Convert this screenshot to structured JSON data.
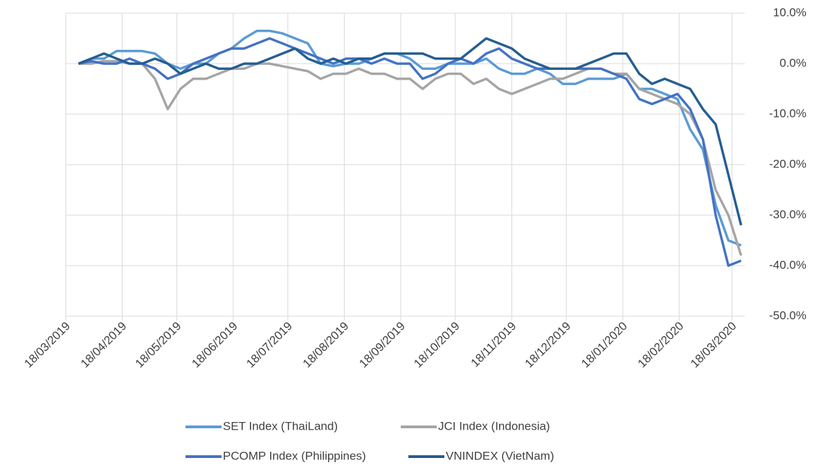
{
  "chart_data": {
    "type": "line",
    "x": [
      "25/03/2019",
      "01/04/2019",
      "08/04/2019",
      "15/04/2019",
      "22/04/2019",
      "29/04/2019",
      "06/05/2019",
      "13/05/2019",
      "20/05/2019",
      "27/05/2019",
      "03/06/2019",
      "10/06/2019",
      "17/06/2019",
      "24/06/2019",
      "01/07/2019",
      "08/07/2019",
      "15/07/2019",
      "22/07/2019",
      "29/07/2019",
      "05/08/2019",
      "12/08/2019",
      "19/08/2019",
      "26/08/2019",
      "02/09/2019",
      "09/09/2019",
      "16/09/2019",
      "23/09/2019",
      "30/09/2019",
      "07/10/2019",
      "14/10/2019",
      "21/10/2019",
      "28/10/2019",
      "04/11/2019",
      "11/11/2019",
      "18/11/2019",
      "25/11/2019",
      "02/12/2019",
      "09/12/2019",
      "16/12/2019",
      "23/12/2019",
      "30/12/2019",
      "06/01/2020",
      "13/01/2020",
      "20/01/2020",
      "27/01/2020",
      "03/02/2020",
      "10/02/2020",
      "17/02/2020",
      "24/02/2020",
      "02/03/2020",
      "09/03/2020",
      "16/03/2020",
      "23/03/2020"
    ],
    "series": [
      {
        "name": "SET Index (ThaiLand)",
        "color": "#5b9bd5",
        "values": [
          0,
          1,
          1,
          2.5,
          2.5,
          2.5,
          2,
          0,
          -1,
          0,
          0,
          2,
          3,
          5,
          6.5,
          6.5,
          6,
          5,
          4,
          0,
          -0.5,
          0,
          0,
          1,
          2,
          2,
          1,
          -1,
          -1,
          0,
          0,
          0,
          1,
          -1,
          -2,
          -2,
          -1,
          -2,
          -4,
          -4,
          -3,
          -3,
          -3,
          -2,
          -5,
          -5,
          -6,
          -7,
          -13,
          -17,
          -28,
          -35,
          -36
        ]
      },
      {
        "name": "JCI Index (Indonesia)",
        "color": "#a5a5a5",
        "values": [
          0,
          0,
          0.5,
          0.5,
          0,
          0,
          -3,
          -9,
          -5,
          -3,
          -3,
          -2,
          -1,
          -1,
          0,
          0,
          -0.5,
          -1,
          -1.5,
          -3,
          -2,
          -2,
          -1,
          -2,
          -2,
          -3,
          -3,
          -5,
          -3,
          -2,
          -2,
          -4,
          -3,
          -5,
          -6,
          -5,
          -4,
          -3,
          -3,
          -2,
          -1,
          -1,
          -2,
          -2,
          -5,
          -6,
          -7,
          -8,
          -10,
          -15,
          -25,
          -30,
          -38
        ]
      },
      {
        "name": "PCOMP Index (Philippines)",
        "color": "#4472c4",
        "values": [
          0,
          0.5,
          0,
          0,
          1,
          0,
          -1,
          -3,
          -2,
          0,
          1,
          2,
          3,
          3,
          4,
          5,
          4,
          3,
          2,
          1,
          0,
          1,
          1,
          0,
          1,
          0,
          0,
          -3,
          -2,
          0,
          1,
          0,
          2,
          3,
          1,
          0,
          -1,
          -1,
          -1,
          -1,
          -1,
          -1,
          -2,
          -3,
          -7,
          -8,
          -7,
          -6,
          -9,
          -15,
          -30,
          -40,
          -39
        ]
      },
      {
        "name": "VNINDEX (VietNam)",
        "color": "#255e91",
        "values": [
          0,
          1,
          2,
          1,
          0,
          0,
          1,
          0,
          -2,
          -1,
          0,
          -1,
          -1,
          0,
          0,
          1,
          2,
          3,
          1,
          0,
          1,
          0,
          1,
          1,
          2,
          2,
          2,
          2,
          1,
          1,
          1,
          3,
          5,
          4,
          3,
          1,
          0,
          -1,
          -1,
          -1,
          0,
          1,
          2,
          2,
          -2,
          -4,
          -3,
          -4,
          -5,
          -9,
          -12,
          -22,
          -32
        ]
      }
    ],
    "xlim": [
      "18/03/2019",
      "25/03/2020"
    ],
    "xticks": [
      "18/03/2019",
      "18/04/2019",
      "18/05/2019",
      "18/06/2019",
      "18/07/2019",
      "18/08/2019",
      "18/09/2019",
      "18/10/2019",
      "18/11/2019",
      "18/12/2019",
      "18/01/2020",
      "18/02/2020",
      "18/03/2020"
    ],
    "ylim": [
      -50,
      10
    ],
    "yticks": [
      {
        "value": -50,
        "label": "-50.0%"
      },
      {
        "value": -40,
        "label": "-40.0%"
      },
      {
        "value": -30,
        "label": "-30.0%"
      },
      {
        "value": -20,
        "label": "-20.0%"
      },
      {
        "value": -10,
        "label": "-10.0%"
      },
      {
        "value": 0,
        "label": "0.0%"
      },
      {
        "value": 10,
        "label": "10.0%"
      }
    ],
    "grid": true,
    "legend": "bottom"
  }
}
